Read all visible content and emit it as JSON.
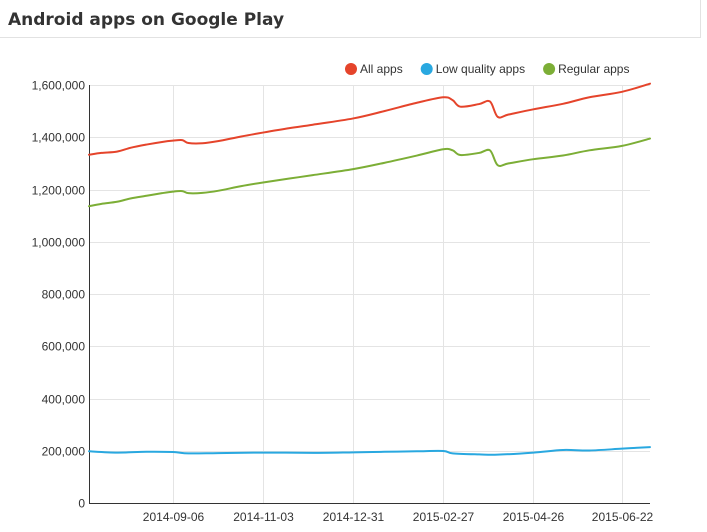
{
  "panel": {
    "title": "Android apps on Google Play"
  },
  "chart_data": {
    "type": "line",
    "title": "Android apps on Google Play",
    "xlabel": "",
    "ylabel": "",
    "ylim": [
      0,
      1600000
    ],
    "yticks": [
      0,
      200000,
      400000,
      600000,
      800000,
      1000000,
      1200000,
      1400000,
      1600000
    ],
    "ytick_labels": [
      "0",
      "200,000",
      "400,000",
      "600,000",
      "800,000",
      "1,000,000",
      "1,200,000",
      "1,400,000",
      "1,600,000"
    ],
    "x_range": [
      "2014-07-14",
      "2015-07-10"
    ],
    "xticks": [
      "2014-09-06",
      "2014-11-03",
      "2014-12-31",
      "2015-02-27",
      "2015-04-26",
      "2015-06-22"
    ],
    "grid": true,
    "legend_position": "top-right",
    "series": [
      {
        "name": "All apps",
        "color": "#e5442b",
        "x": [
          "2014-07-14",
          "2014-07-22",
          "2014-08-01",
          "2014-08-10",
          "2014-08-20",
          "2014-08-30",
          "2014-09-06",
          "2014-09-12",
          "2014-09-16",
          "2014-09-25",
          "2014-10-05",
          "2014-10-20",
          "2014-11-03",
          "2014-11-20",
          "2014-12-05",
          "2014-12-31",
          "2015-01-20",
          "2015-02-10",
          "2015-02-27",
          "2015-03-05",
          "2015-03-10",
          "2015-03-22",
          "2015-03-29",
          "2015-04-03",
          "2015-04-10",
          "2015-04-26",
          "2015-05-15",
          "2015-06-01",
          "2015-06-22",
          "2015-07-10"
        ],
        "values": [
          1333000,
          1340000,
          1345000,
          1360000,
          1372000,
          1382000,
          1387000,
          1389000,
          1378000,
          1377000,
          1385000,
          1403000,
          1418000,
          1435000,
          1448000,
          1472000,
          1500000,
          1532000,
          1553000,
          1542000,
          1517000,
          1527000,
          1537000,
          1478000,
          1487000,
          1507000,
          1528000,
          1553000,
          1574000,
          1605000
        ]
      },
      {
        "name": "Low quality apps",
        "color": "#29a8e0",
        "x": [
          "2014-07-14",
          "2014-08-01",
          "2014-08-20",
          "2014-09-06",
          "2014-09-16",
          "2014-10-05",
          "2014-11-03",
          "2014-12-05",
          "2014-12-31",
          "2015-01-20",
          "2015-02-10",
          "2015-02-27",
          "2015-03-05",
          "2015-03-22",
          "2015-04-03",
          "2015-04-26",
          "2015-05-15",
          "2015-06-01",
          "2015-06-22",
          "2015-07-10"
        ],
        "values": [
          198000,
          193000,
          196000,
          195000,
          190000,
          191000,
          193000,
          192000,
          194000,
          196000,
          198000,
          199000,
          190000,
          186000,
          185000,
          193000,
          203000,
          201000,
          208000,
          214000
        ]
      },
      {
        "name": "Regular apps",
        "color": "#7cae36",
        "x": [
          "2014-07-14",
          "2014-07-22",
          "2014-08-01",
          "2014-08-10",
          "2014-08-20",
          "2014-08-30",
          "2014-09-06",
          "2014-09-12",
          "2014-09-16",
          "2014-09-25",
          "2014-10-05",
          "2014-10-20",
          "2014-11-03",
          "2014-11-20",
          "2014-12-05",
          "2014-12-31",
          "2015-01-20",
          "2015-02-10",
          "2015-02-27",
          "2015-03-05",
          "2015-03-10",
          "2015-03-22",
          "2015-03-29",
          "2015-04-03",
          "2015-04-10",
          "2015-04-26",
          "2015-05-15",
          "2015-06-01",
          "2015-06-22",
          "2015-07-10"
        ],
        "values": [
          1136000,
          1145000,
          1153000,
          1166000,
          1176000,
          1186000,
          1192000,
          1194000,
          1186000,
          1187000,
          1195000,
          1213000,
          1227000,
          1242000,
          1255000,
          1278000,
          1302000,
          1330000,
          1354000,
          1350000,
          1332000,
          1340000,
          1350000,
          1293000,
          1300000,
          1316000,
          1330000,
          1350000,
          1367000,
          1395000
        ]
      }
    ]
  }
}
